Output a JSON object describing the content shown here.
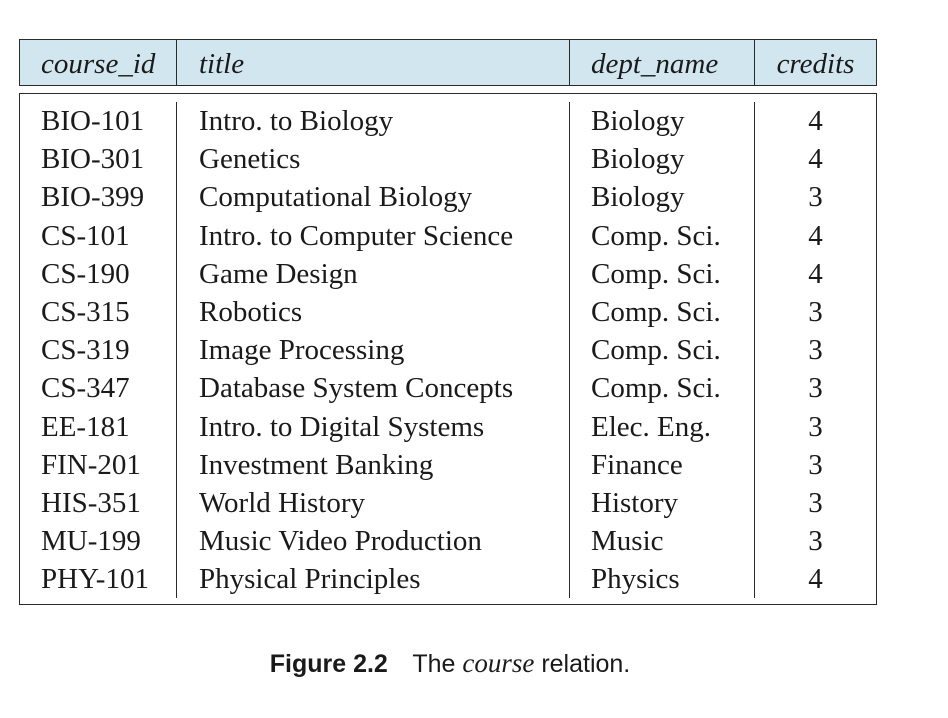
{
  "table": {
    "headers": [
      "course_id",
      "title",
      "dept_name",
      "credits"
    ],
    "rows": [
      [
        "BIO-101",
        "Intro. to Biology",
        "Biology",
        "4"
      ],
      [
        "BIO-301",
        "Genetics",
        "Biology",
        "4"
      ],
      [
        "BIO-399",
        "Computational Biology",
        "Biology",
        "3"
      ],
      [
        "CS-101",
        "Intro. to Computer Science",
        "Comp. Sci.",
        "4"
      ],
      [
        "CS-190",
        "Game Design",
        "Comp. Sci.",
        "4"
      ],
      [
        "CS-315",
        "Robotics",
        "Comp. Sci.",
        "3"
      ],
      [
        "CS-319",
        "Image Processing",
        "Comp. Sci.",
        "3"
      ],
      [
        "CS-347",
        "Database System Concepts",
        "Comp. Sci.",
        "3"
      ],
      [
        "EE-181",
        "Intro. to Digital Systems",
        "Elec. Eng.",
        "3"
      ],
      [
        "FIN-201",
        "Investment Banking",
        "Finance",
        "3"
      ],
      [
        "HIS-351",
        "World History",
        "History",
        "3"
      ],
      [
        "MU-199",
        "Music Video Production",
        "Music",
        "3"
      ],
      [
        "PHY-101",
        "Physical Principles",
        "Physics",
        "4"
      ]
    ],
    "header_fill": "#d2e6f0"
  },
  "caption": {
    "number": "Figure 2.2",
    "prefix": "The",
    "italic": "course",
    "suffix": "relation."
  }
}
